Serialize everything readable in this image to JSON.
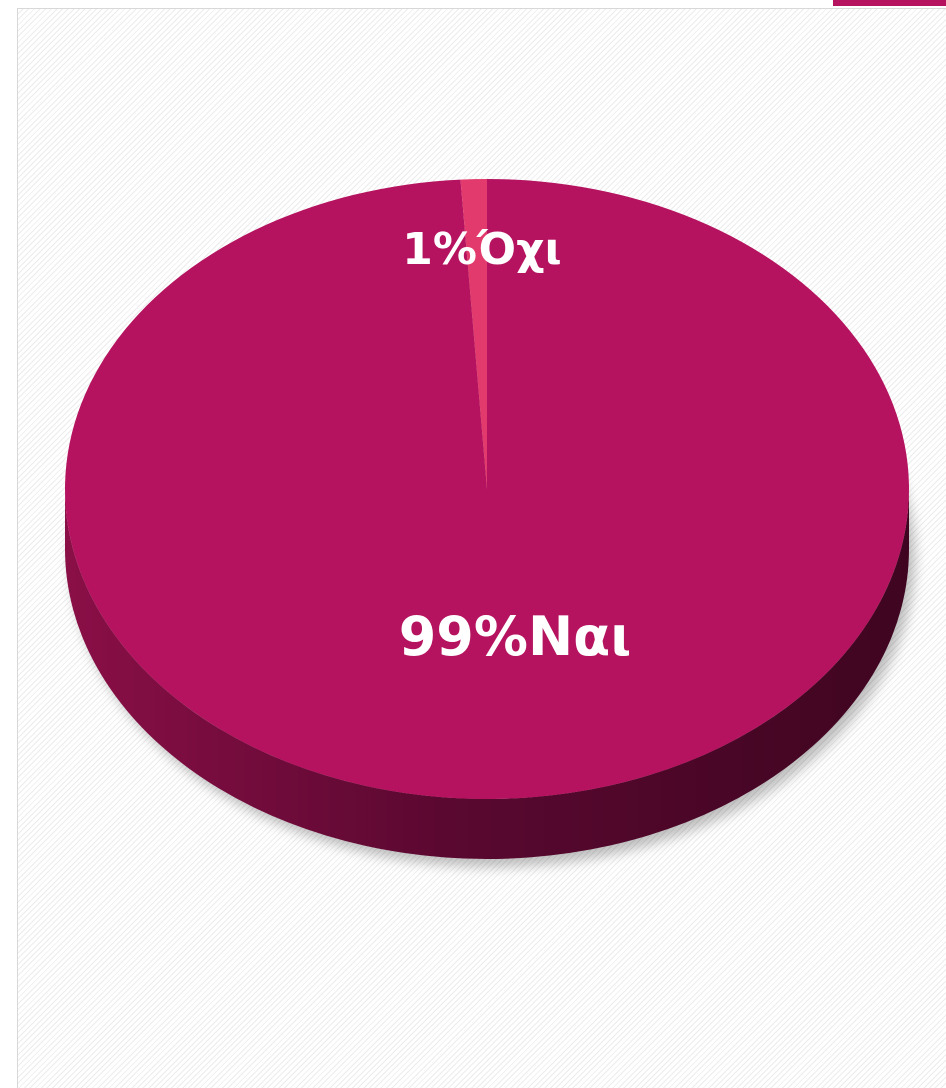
{
  "chart_data": {
    "type": "pie",
    "categories": [
      "Ναι",
      "Όχι"
    ],
    "values": [
      99,
      1
    ],
    "value_labels": [
      "99%",
      "1%"
    ],
    "colors": [
      "#b5135f",
      "#e23a6c"
    ]
  }
}
